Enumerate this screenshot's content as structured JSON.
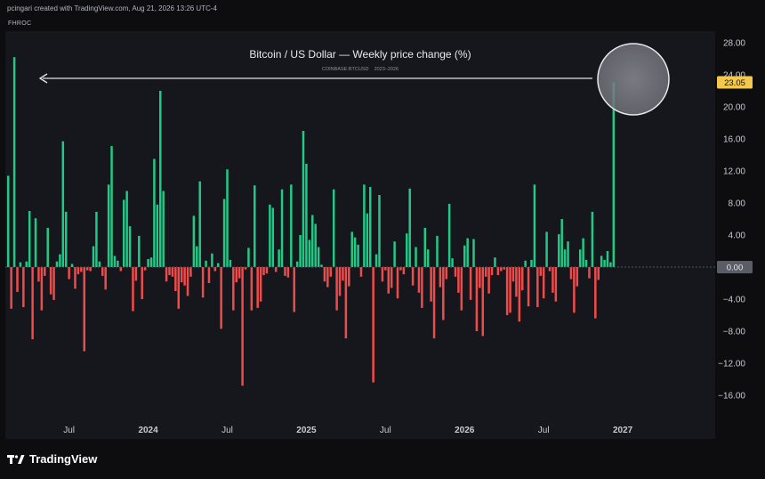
{
  "header": {
    "credit": "pcingari created with TradingView.com, Aug 21, 2026 13:26 UTC-4",
    "indicator": "FHROC"
  },
  "branding": {
    "logo_text": "TradingView"
  },
  "colors": {
    "background": "#16171c",
    "up": "#22c986",
    "down": "#f04b4b",
    "axis_text": "#c8cbd2",
    "highlight_label_bg": "#f2c94c",
    "zero_label_bg": "#5a5d66"
  },
  "chart_data": {
    "type": "bar",
    "title": "Bitcoin / US Dollar — Weekly price change (%)",
    "subtitle": "COINBASE:BTCUSD    2023–2026",
    "ylim": [
      -18,
      30
    ],
    "y_ticks": [
      28,
      24,
      20,
      16,
      12,
      8,
      4,
      0,
      -4,
      -8,
      -12,
      -16
    ],
    "y_tick_labels": [
      "28.00",
      "24.00",
      "20.00",
      "16.00",
      "12.00",
      "8.00",
      "4.00",
      "0.00",
      "−4.00",
      "−8.00",
      "−12.00",
      "−16.00"
    ],
    "x_tick_labels": [
      {
        "label": "Jul",
        "index": 20
      },
      {
        "label": "2024",
        "index": 46
      },
      {
        "label": "Jul",
        "index": 72
      },
      {
        "label": "2025",
        "index": 98
      },
      {
        "label": "Jul",
        "index": 124
      },
      {
        "label": "2026",
        "index": 150
      },
      {
        "label": "Jul",
        "index": 176
      },
      {
        "label": "2027",
        "index": 202
      }
    ],
    "total_slots": 208,
    "last_value_label": "23.05",
    "zero_label": "0.00",
    "values": [
      11.4,
      -5.2,
      26.2,
      -3.1,
      0.6,
      -5.0,
      0.7,
      7.0,
      -9.0,
      6.1,
      -1.8,
      -5.4,
      -1.1,
      4.9,
      -3.4,
      -4.1,
      0.7,
      1.6,
      15.7,
      6.9,
      -1.5,
      0.4,
      -2.7,
      -0.9,
      -0.6,
      -10.5,
      -0.4,
      -0.5,
      2.6,
      6.9,
      0.7,
      -1.1,
      -2.8,
      10.3,
      15.1,
      1.4,
      0.8,
      -0.5,
      8.4,
      9.5,
      5.1,
      -5.5,
      -1.7,
      3.9,
      -4.0,
      -0.4,
      1.0,
      1.2,
      13.5,
      7.8,
      22.0,
      9.5,
      -1.8,
      -1.0,
      -1.2,
      -3.0,
      -5.2,
      -1.9,
      -2.3,
      -3.6,
      -1.2,
      6.4,
      2.6,
      10.7,
      -3.8,
      0.8,
      -2.0,
      1.7,
      -0.5,
      0.5,
      -7.7,
      8.5,
      12.2,
      0.9,
      -5.4,
      -1.9,
      -1.4,
      -14.8,
      -0.3,
      2.4,
      -5.4,
      10.2,
      -5.1,
      -4.3,
      -1.0,
      -0.8,
      7.8,
      7.4,
      -0.6,
      2.2,
      9.7,
      -1.1,
      -1.3,
      10.3,
      -5.6,
      0.7,
      4.0,
      17.0,
      12.9,
      3.4,
      6.5,
      5.4,
      2.5,
      0.3,
      -1.8,
      -2.5,
      -1.2,
      9.7,
      -5.4,
      -3.6,
      -1.7,
      -8.9,
      -2.4,
      4.4,
      3.7,
      2.8,
      -1.2,
      10.3,
      6.7,
      10.0,
      -14.4,
      1.6,
      9.0,
      -1.8,
      -0.4,
      -3.3,
      -2.6,
      3.2,
      -3.9,
      -0.4,
      -0.9,
      4.2,
      9.8,
      -2.3,
      2.5,
      -3.2,
      -5.1,
      4.9,
      2.2,
      -4.3,
      -8.9,
      3.9,
      -2.5,
      -6.6,
      -1.5,
      7.9,
      1.1,
      -1.2,
      -3.2,
      -5.4,
      2.7,
      3.6,
      -4.1,
      3.5,
      -8.0,
      -2.6,
      -8.6,
      -1.2,
      -3.3,
      -1.0,
      1.2,
      -1.0,
      -0.5,
      -0.3,
      -6.0,
      -5.7,
      -1.8,
      -3.7,
      -6.8,
      -2.9,
      0.8,
      -4.9,
      0.9,
      10.3,
      -5.0,
      -1.1,
      -3.9,
      4.4,
      -0.5,
      -3.2,
      -4.3,
      4.1,
      6.0,
      2.2,
      3.2,
      -1.5,
      -5.7,
      -2.4,
      2.2,
      3.6,
      0.9,
      -1.4,
      6.9,
      -6.4,
      -1.6,
      1.4,
      0.9,
      2.0,
      0.6,
      23.05
    ]
  }
}
